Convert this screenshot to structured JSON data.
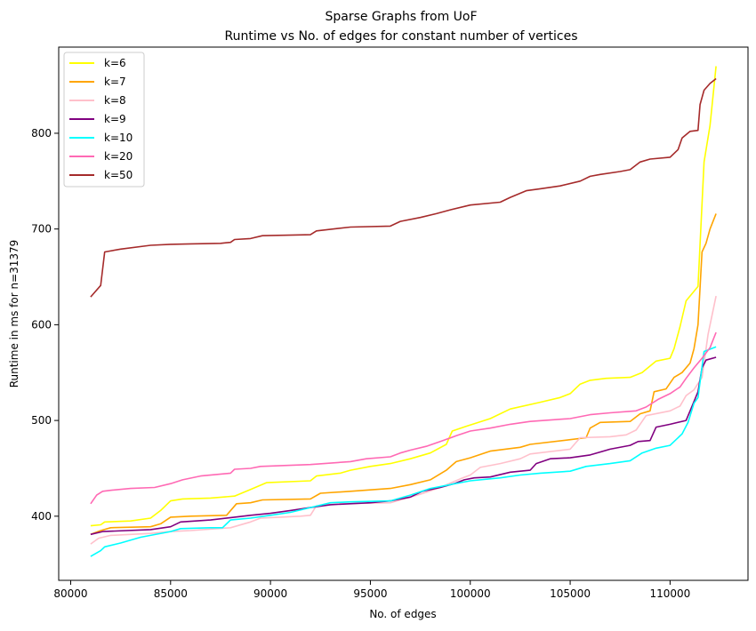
{
  "chart_data": {
    "type": "line",
    "title": "Sparse Graphs from UoF",
    "subtitle": "Runtime vs No. of edges for constant number of vertices",
    "xlabel": "No. of edges",
    "ylabel": "Runtime in ms for n=31379",
    "xlim": [
      79400,
      113900
    ],
    "ylim": [
      333,
      890
    ],
    "xticks": [
      80000,
      85000,
      90000,
      95000,
      100000,
      105000,
      110000
    ],
    "yticks": [
      400,
      500,
      600,
      700,
      800
    ],
    "grid": false,
    "legend_position": "top-left",
    "series": [
      {
        "name": "k=6",
        "color": "#ffff00",
        "points": [
          [
            81000,
            390
          ],
          [
            81500,
            391
          ],
          [
            81700,
            394
          ],
          [
            83000,
            395
          ],
          [
            84000,
            398
          ],
          [
            84500,
            406
          ],
          [
            85000,
            416
          ],
          [
            85600,
            418
          ],
          [
            87000,
            419
          ],
          [
            88200,
            421
          ],
          [
            89000,
            428
          ],
          [
            89800,
            435
          ],
          [
            92000,
            437
          ],
          [
            92300,
            442
          ],
          [
            93500,
            445
          ],
          [
            94000,
            448
          ],
          [
            95000,
            452
          ],
          [
            96000,
            455
          ],
          [
            97000,
            460
          ],
          [
            98000,
            466
          ],
          [
            98800,
            475
          ],
          [
            99100,
            489
          ],
          [
            99800,
            494
          ],
          [
            101000,
            502
          ],
          [
            102000,
            512
          ],
          [
            103500,
            519
          ],
          [
            104500,
            524
          ],
          [
            105000,
            528
          ],
          [
            105500,
            538
          ],
          [
            106000,
            542
          ],
          [
            106800,
            544
          ],
          [
            108000,
            545
          ],
          [
            108600,
            550
          ],
          [
            109300,
            562
          ],
          [
            110000,
            565
          ],
          [
            110200,
            575
          ],
          [
            110500,
            598
          ],
          [
            110800,
            625
          ],
          [
            111200,
            635
          ],
          [
            111400,
            640
          ],
          [
            111700,
            770
          ],
          [
            112000,
            808
          ],
          [
            112300,
            870
          ]
        ]
      },
      {
        "name": "k=7",
        "color": "#ffa500",
        "points": [
          [
            81000,
            381
          ],
          [
            81500,
            385
          ],
          [
            82000,
            388
          ],
          [
            84000,
            389
          ],
          [
            84500,
            392
          ],
          [
            85000,
            399
          ],
          [
            86000,
            400
          ],
          [
            87800,
            401
          ],
          [
            88300,
            413
          ],
          [
            89000,
            414
          ],
          [
            89600,
            417
          ],
          [
            92000,
            418
          ],
          [
            92500,
            424
          ],
          [
            94000,
            426
          ],
          [
            96000,
            429
          ],
          [
            97000,
            433
          ],
          [
            98000,
            438
          ],
          [
            98800,
            448
          ],
          [
            99300,
            457
          ],
          [
            100000,
            461
          ],
          [
            101000,
            468
          ],
          [
            102500,
            472
          ],
          [
            103000,
            475
          ],
          [
            105000,
            480
          ],
          [
            105800,
            482
          ],
          [
            106000,
            492
          ],
          [
            106500,
            498
          ],
          [
            108000,
            499
          ],
          [
            108500,
            507
          ],
          [
            109000,
            510
          ],
          [
            109200,
            530
          ],
          [
            109800,
            533
          ],
          [
            110200,
            545
          ],
          [
            110600,
            550
          ],
          [
            111000,
            560
          ],
          [
            111200,
            575
          ],
          [
            111400,
            600
          ],
          [
            111600,
            676
          ],
          [
            111800,
            685
          ],
          [
            112000,
            700
          ],
          [
            112300,
            716
          ]
        ]
      },
      {
        "name": "k=8",
        "color": "#ffc0cb",
        "points": [
          [
            81000,
            371
          ],
          [
            81400,
            377
          ],
          [
            82000,
            380
          ],
          [
            84000,
            382
          ],
          [
            85000,
            384
          ],
          [
            86000,
            385
          ],
          [
            88000,
            388
          ],
          [
            89000,
            394
          ],
          [
            89500,
            398
          ],
          [
            90500,
            399
          ],
          [
            91500,
            400
          ],
          [
            92000,
            401
          ],
          [
            92300,
            411
          ],
          [
            93500,
            413
          ],
          [
            96000,
            414
          ],
          [
            97500,
            423
          ],
          [
            98500,
            430
          ],
          [
            99500,
            439
          ],
          [
            100000,
            443
          ],
          [
            100500,
            451
          ],
          [
            101500,
            455
          ],
          [
            102500,
            460
          ],
          [
            103000,
            465
          ],
          [
            105000,
            470
          ],
          [
            105500,
            482
          ],
          [
            107000,
            483
          ],
          [
            107800,
            485
          ],
          [
            108300,
            490
          ],
          [
            108800,
            505
          ],
          [
            110000,
            510
          ],
          [
            110500,
            515
          ],
          [
            110800,
            526
          ],
          [
            111200,
            532
          ],
          [
            111600,
            545
          ],
          [
            111900,
            590
          ],
          [
            112300,
            630
          ]
        ]
      },
      {
        "name": "k=9",
        "color": "#800080",
        "points": [
          [
            81000,
            381
          ],
          [
            81600,
            384
          ],
          [
            84000,
            386
          ],
          [
            85000,
            389
          ],
          [
            85500,
            394
          ],
          [
            87000,
            396
          ],
          [
            88200,
            399
          ],
          [
            89000,
            401
          ],
          [
            90000,
            403
          ],
          [
            91000,
            406
          ],
          [
            92000,
            409
          ],
          [
            93000,
            412
          ],
          [
            95000,
            414
          ],
          [
            96000,
            416
          ],
          [
            97000,
            420
          ],
          [
            97600,
            426
          ],
          [
            98500,
            430
          ],
          [
            99200,
            434
          ],
          [
            99700,
            438
          ],
          [
            100200,
            440
          ],
          [
            101000,
            441
          ],
          [
            102000,
            446
          ],
          [
            103000,
            448
          ],
          [
            103300,
            455
          ],
          [
            104000,
            460
          ],
          [
            105000,
            461
          ],
          [
            106000,
            464
          ],
          [
            107000,
            470
          ],
          [
            108000,
            474
          ],
          [
            108400,
            478
          ],
          [
            109000,
            479
          ],
          [
            109300,
            493
          ],
          [
            110000,
            496
          ],
          [
            110800,
            500
          ],
          [
            111000,
            510
          ],
          [
            111400,
            530
          ],
          [
            111600,
            555
          ],
          [
            111800,
            563
          ],
          [
            112300,
            566
          ]
        ]
      },
      {
        "name": "k=10",
        "color": "#00ffff",
        "points": [
          [
            81000,
            358
          ],
          [
            81500,
            364
          ],
          [
            81700,
            368
          ],
          [
            82500,
            372
          ],
          [
            83500,
            378
          ],
          [
            84000,
            380
          ],
          [
            85000,
            384
          ],
          [
            85500,
            387
          ],
          [
            87000,
            388
          ],
          [
            87600,
            388
          ],
          [
            88000,
            396
          ],
          [
            89000,
            398
          ],
          [
            90000,
            401
          ],
          [
            91000,
            404
          ],
          [
            92000,
            409
          ],
          [
            93000,
            414
          ],
          [
            94000,
            415
          ],
          [
            96000,
            416
          ],
          [
            97000,
            422
          ],
          [
            98000,
            429
          ],
          [
            99000,
            433
          ],
          [
            100000,
            437
          ],
          [
            101500,
            440
          ],
          [
            102500,
            443
          ],
          [
            103500,
            445
          ],
          [
            105000,
            447
          ],
          [
            105800,
            452
          ],
          [
            107000,
            455
          ],
          [
            108000,
            458
          ],
          [
            108600,
            466
          ],
          [
            109300,
            471
          ],
          [
            110000,
            474
          ],
          [
            110600,
            486
          ],
          [
            110900,
            498
          ],
          [
            111200,
            518
          ],
          [
            111400,
            524
          ],
          [
            111700,
            572
          ],
          [
            112300,
            577
          ]
        ]
      },
      {
        "name": "k=20",
        "color": "#ff69b4",
        "points": [
          [
            81000,
            413
          ],
          [
            81300,
            422
          ],
          [
            81600,
            426
          ],
          [
            82000,
            427
          ],
          [
            83000,
            429
          ],
          [
            84200,
            430
          ],
          [
            85000,
            434
          ],
          [
            85600,
            438
          ],
          [
            86500,
            442
          ],
          [
            88000,
            445
          ],
          [
            88200,
            449
          ],
          [
            89000,
            450
          ],
          [
            89500,
            452
          ],
          [
            92000,
            454
          ],
          [
            94000,
            457
          ],
          [
            94800,
            460
          ],
          [
            96000,
            462
          ],
          [
            96500,
            466
          ],
          [
            97000,
            469
          ],
          [
            97800,
            473
          ],
          [
            98500,
            478
          ],
          [
            99300,
            484
          ],
          [
            100000,
            489
          ],
          [
            101000,
            492
          ],
          [
            102000,
            496
          ],
          [
            103000,
            499
          ],
          [
            105000,
            502
          ],
          [
            106000,
            506
          ],
          [
            107000,
            508
          ],
          [
            108300,
            510
          ],
          [
            108800,
            514
          ],
          [
            109400,
            522
          ],
          [
            110000,
            528
          ],
          [
            110500,
            535
          ],
          [
            110800,
            544
          ],
          [
            111200,
            555
          ],
          [
            111600,
            565
          ],
          [
            112000,
            576
          ],
          [
            112300,
            592
          ]
        ]
      },
      {
        "name": "k=50",
        "color": "#a52a2a",
        "points": [
          [
            81000,
            629
          ],
          [
            81500,
            641
          ],
          [
            81700,
            676
          ],
          [
            82500,
            679
          ],
          [
            84000,
            683
          ],
          [
            85000,
            684
          ],
          [
            86000,
            684.5
          ],
          [
            87500,
            685
          ],
          [
            88000,
            686
          ],
          [
            88200,
            689
          ],
          [
            89000,
            690
          ],
          [
            89600,
            693
          ],
          [
            92000,
            694
          ],
          [
            92300,
            698
          ],
          [
            94000,
            702
          ],
          [
            96000,
            703
          ],
          [
            96500,
            708
          ],
          [
            97500,
            712
          ],
          [
            98300,
            716
          ],
          [
            99000,
            720
          ],
          [
            100000,
            725
          ],
          [
            101500,
            728
          ],
          [
            102000,
            733
          ],
          [
            102800,
            740
          ],
          [
            103500,
            742
          ],
          [
            104500,
            745
          ],
          [
            105500,
            750
          ],
          [
            106000,
            755
          ],
          [
            106500,
            757
          ],
          [
            107500,
            760
          ],
          [
            108000,
            762
          ],
          [
            108500,
            770
          ],
          [
            109000,
            773
          ],
          [
            110000,
            775
          ],
          [
            110400,
            783
          ],
          [
            110600,
            795
          ],
          [
            111000,
            802
          ],
          [
            111400,
            803
          ],
          [
            111500,
            830
          ],
          [
            111700,
            845
          ],
          [
            112000,
            852
          ],
          [
            112300,
            857
          ]
        ]
      }
    ]
  }
}
